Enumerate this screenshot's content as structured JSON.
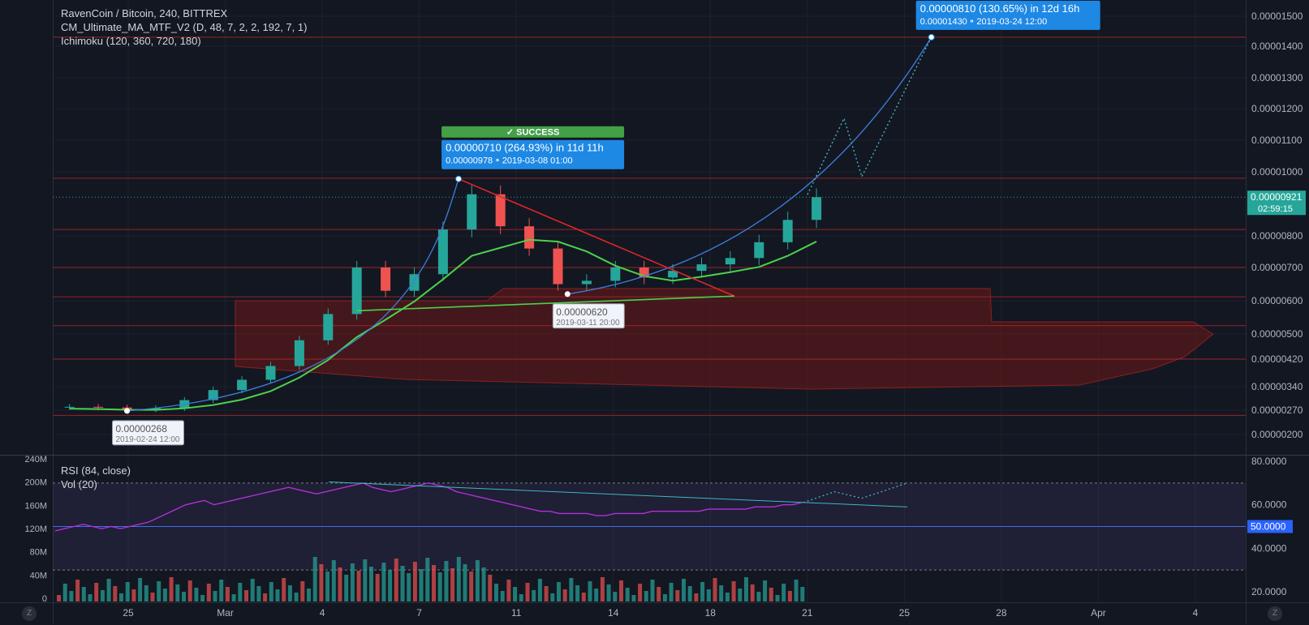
{
  "header": {
    "title": "RavenCoin / Bitcoin, 240, BITTREX",
    "indicators": [
      "CM_Ultimate_MA_MTF_V2 (D, 48, 7, 2, 2, 192, 7, 1)",
      "Ichimoku (120, 360, 720, 180)"
    ]
  },
  "lower_pane": {
    "indicators": [
      "RSI (84, close)",
      "Vol (20)"
    ]
  },
  "buttons": {
    "zoom_left": "Z",
    "zoom_right": "Z"
  },
  "colors": {
    "up": "#26a69a",
    "down": "#ef5350",
    "rsi": "#b030d8",
    "accent": "#2962ff",
    "label_blue": "#1e88e5",
    "success": "#43a047",
    "cloud": "#6e1818",
    "ma_green": "#4cd14c",
    "trend_red": "#e02626",
    "curve_blue": "#3d7fde"
  },
  "chart_data": [
    {
      "type": "line",
      "title": "RavenCoin / Bitcoin, 240, BITTREX",
      "price_axis": {
        "ticks": [
          "0.00001500",
          "0.00001400",
          "0.00001300",
          "0.00001200",
          "0.00001100",
          "0.00001000",
          "0.00000800",
          "0.00000700",
          "0.00000600",
          "0.00000500",
          "0.00000420",
          "0.00000340",
          "0.00000270",
          "0.00000200"
        ]
      },
      "time_axis": {
        "ticks": [
          "25",
          "Mar",
          "4",
          "7",
          "11",
          "14",
          "18",
          "21",
          "25",
          "28",
          "Apr",
          "4"
        ]
      },
      "ylim": [
        1.9e-06,
        1.55e-05
      ],
      "price_series": [
        {
          "t": "2019-02-22",
          "c": 2.8e-06
        },
        {
          "t": "2019-02-23",
          "c": 2.78e-06
        },
        {
          "t": "2019-02-24",
          "c": 2.72e-06
        },
        {
          "t": "2019-02-25",
          "c": 2.76e-06
        },
        {
          "t": "2019-02-26",
          "c": 3e-06
        },
        {
          "t": "2019-02-27",
          "c": 3.3e-06
        },
        {
          "t": "2019-02-28",
          "c": 3.6e-06
        },
        {
          "t": "2019-03-01",
          "c": 4e-06
        },
        {
          "t": "2019-03-02",
          "c": 4.8e-06
        },
        {
          "t": "2019-03-03",
          "c": 5.6e-06
        },
        {
          "t": "2019-03-04",
          "c": 7e-06
        },
        {
          "t": "2019-03-05",
          "c": 6.3e-06
        },
        {
          "t": "2019-03-06",
          "c": 6.8e-06
        },
        {
          "t": "2019-03-07",
          "c": 8.2e-06
        },
        {
          "t": "2019-03-08",
          "c": 9.3e-06
        },
        {
          "t": "2019-03-09",
          "c": 8.3e-06
        },
        {
          "t": "2019-03-10",
          "c": 7.6e-06
        },
        {
          "t": "2019-03-11",
          "c": 6.5e-06
        },
        {
          "t": "2019-03-12",
          "c": 6.6e-06
        },
        {
          "t": "2019-03-13",
          "c": 7e-06
        },
        {
          "t": "2019-03-14",
          "c": 6.7e-06
        },
        {
          "t": "2019-03-15",
          "c": 6.9e-06
        },
        {
          "t": "2019-03-16",
          "c": 7.1e-06
        },
        {
          "t": "2019-03-17",
          "c": 7.3e-06
        },
        {
          "t": "2019-03-18",
          "c": 7.8e-06
        },
        {
          "t": "2019-03-19",
          "c": 8.5e-06
        },
        {
          "t": "2019-03-20",
          "c": 9.21e-06
        }
      ],
      "markers": [
        {
          "label": "0.00000268",
          "sub": "2019-02-24 12:00",
          "price": 2.68e-06
        },
        {
          "label": "0.00000620",
          "sub": "2019-03-11 20:00",
          "price": 6.2e-06
        }
      ],
      "annotations": [
        {
          "badge": "SUCCESS",
          "text": "0.00000710 (264.93%) in 11d 11h",
          "sub": "0.00000978",
          "date": "2019-03-08 01:00",
          "price": 9.78e-06
        },
        {
          "text": "0.00000810 (130.65%) in 12d 16h",
          "sub": "0.00001430",
          "date": "2019-03-24 12:00",
          "price": 1.43e-05
        }
      ],
      "last_price": {
        "value": "0.00000921",
        "countdown": "02:59:15",
        "price": 9.21e-06
      },
      "horizontal_levels": [
        1.43e-05,
        9.8e-06,
        8.2e-06,
        7e-06,
        6.12e-06,
        5.25e-06,
        4.2e-06,
        2.55e-06
      ],
      "grid": true
    },
    {
      "type": "line",
      "title": "RSI (84, close)",
      "rsi_axis": {
        "ticks": [
          "80.0000",
          "60.0000",
          "40.0000",
          "20.0000"
        ],
        "current": "50.0000"
      },
      "ylim": [
        15,
        82
      ],
      "levels": [
        70,
        50,
        30
      ],
      "rsi_values": [
        48,
        49,
        50,
        51,
        50,
        49,
        50,
        49,
        50,
        51,
        52,
        54,
        56,
        58,
        60,
        61,
        62,
        60,
        61,
        62,
        63,
        64,
        65,
        66,
        67,
        68,
        67,
        66,
        65,
        66,
        67,
        68,
        69,
        70,
        68,
        67,
        66,
        67,
        68,
        69,
        70,
        69,
        68,
        66,
        65,
        64,
        63,
        62,
        61,
        60,
        59,
        58,
        57,
        57,
        56,
        56,
        56,
        56,
        55,
        55,
        56,
        56,
        56,
        56,
        57,
        57,
        57,
        57,
        57,
        57,
        58,
        58,
        58,
        58,
        58,
        59,
        59,
        59,
        60,
        60,
        61
      ],
      "volume_axis": {
        "ticks": [
          "240M",
          "200M",
          "160M",
          "120M",
          "80M",
          "40M",
          "0"
        ]
      }
    }
  ]
}
